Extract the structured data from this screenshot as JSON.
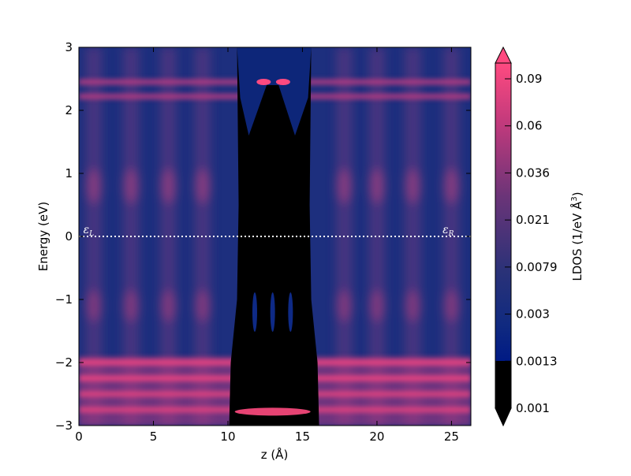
{
  "chart_data": {
    "type": "heatmap",
    "xlabel": "z (Å)",
    "ylabel": "Energy (eV)",
    "xlim": [
      0,
      26.3
    ],
    "ylim": [
      -3,
      3
    ],
    "x_ticks": [
      0,
      5,
      10,
      15,
      20,
      25
    ],
    "x_tick_labels": [
      "0",
      "5",
      "10",
      "15",
      "20",
      "25"
    ],
    "y_ticks": [
      -3,
      -2,
      -1,
      0,
      1,
      2,
      3
    ],
    "y_tick_labels": [
      "−3",
      "−2",
      "−1",
      "0",
      "1",
      "2",
      "3"
    ],
    "colorbar": {
      "label": "LDOS (1/eV Å³)",
      "label_plain": "LDOS (1/eV Å",
      "label_sup": "3",
      "label_close": ")",
      "ticks": [
        "0.001",
        "0.0013",
        "0.003",
        "0.0079",
        "0.021",
        "0.036",
        "0.06",
        "0.09"
      ],
      "scale": "log",
      "extend": "both",
      "low_color": "#000000",
      "mid_color": "#0a2a80",
      "high_color": "#ff4a80"
    },
    "annotations": [
      {
        "text": "ε",
        "sub": "L",
        "x": 0.3,
        "y": 0
      },
      {
        "text": "ε",
        "sub": "R",
        "x": 24.4,
        "y": 0
      }
    ],
    "reference_line": {
      "y": 0,
      "style": "dotted",
      "color": "#ffffff"
    },
    "gap_region": {
      "x_start": 10.4,
      "x_end": 15.8,
      "note_visible": false
    }
  }
}
